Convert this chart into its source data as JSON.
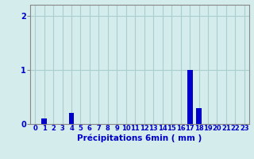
{
  "values": [
    0,
    0.1,
    0,
    0,
    0.2,
    0,
    0,
    0,
    0,
    0,
    0,
    0,
    0,
    0,
    0,
    0,
    0,
    1.0,
    0.3,
    0,
    0,
    0,
    0,
    0
  ],
  "xlabel": "Précipitations 6min ( mm )",
  "ylim": [
    0,
    2.2
  ],
  "yticks": [
    0,
    1,
    2
  ],
  "bar_color": "#0000cc",
  "bg_color": "#d4eceb",
  "grid_color": "#aacfcf",
  "axis_color": "#888888",
  "label_color": "#0000cc",
  "tick_label_color": "#0000cc",
  "tick_fontsize": 6,
  "xlabel_fontsize": 7.5,
  "ylabel_fontsize": 7
}
